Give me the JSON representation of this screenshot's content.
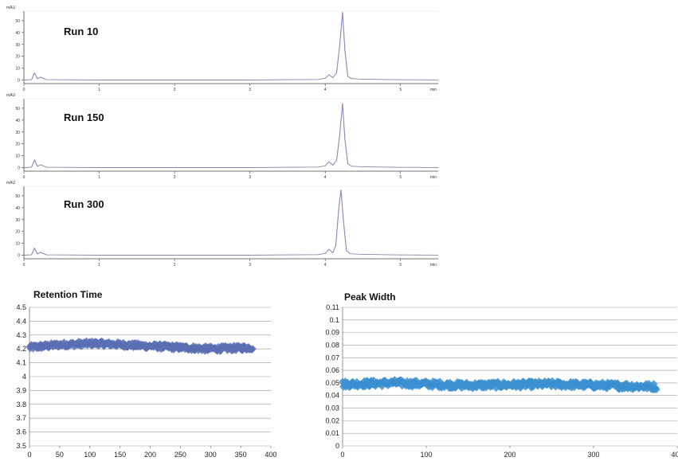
{
  "chart_data": [
    {
      "type": "line",
      "title": "Run 10",
      "ylabel": "mAU",
      "xlabel": "min",
      "xlim": [
        0,
        5.5
      ],
      "ylim": [
        -3,
        58
      ],
      "x_ticks": [
        0,
        1,
        2,
        3,
        4,
        5
      ],
      "y_ticks": [
        0,
        10,
        20,
        30,
        40,
        50
      ],
      "series": [
        {
          "x": [
            0,
            0.1,
            0.14,
            0.18,
            0.22,
            0.3,
            1,
            2,
            3,
            3.9,
            4.0,
            4.05,
            4.1,
            4.15,
            4.19,
            4.23,
            4.26,
            4.3,
            4.35,
            4.45,
            5,
            5.5
          ],
          "y": [
            0,
            0.3,
            6,
            1,
            2.5,
            0.3,
            0,
            0,
            0,
            0.5,
            1.5,
            4.5,
            2,
            6,
            28,
            57,
            25,
            3,
            1.2,
            0.8,
            0.2,
            0.1
          ]
        }
      ]
    },
    {
      "type": "line",
      "title": "Run 150",
      "ylabel": "mAU",
      "xlabel": "min",
      "xlim": [
        0,
        5.5
      ],
      "ylim": [
        -3,
        58
      ],
      "x_ticks": [
        0,
        1,
        2,
        3,
        4,
        5
      ],
      "y_ticks": [
        0,
        10,
        20,
        30,
        40,
        50
      ],
      "series": [
        {
          "x": [
            0,
            0.1,
            0.14,
            0.18,
            0.22,
            0.3,
            1,
            2,
            3,
            3.9,
            4.0,
            4.05,
            4.1,
            4.15,
            4.19,
            4.23,
            4.26,
            4.3,
            4.35,
            4.45,
            5,
            5.5
          ],
          "y": [
            0,
            0.3,
            6.5,
            1,
            2.5,
            0.3,
            0,
            0,
            0,
            0.5,
            1.5,
            5,
            2,
            6,
            26,
            54,
            24,
            3,
            1.2,
            0.8,
            0.2,
            0.1
          ]
        }
      ]
    },
    {
      "type": "line",
      "title": "Run 300",
      "ylabel": "mAU",
      "xlabel": "min",
      "xlim": [
        0,
        5.5
      ],
      "ylim": [
        -3,
        58
      ],
      "x_ticks": [
        0,
        1,
        2,
        3,
        4,
        5
      ],
      "y_ticks": [
        0,
        10,
        20,
        30,
        40,
        50
      ],
      "series": [
        {
          "x": [
            0,
            0.1,
            0.14,
            0.18,
            0.22,
            0.3,
            1,
            2,
            3,
            3.9,
            4.0,
            4.05,
            4.1,
            4.14,
            4.18,
            4.21,
            4.24,
            4.28,
            4.33,
            4.45,
            5,
            5.5
          ],
          "y": [
            0,
            0.3,
            6,
            1,
            2.5,
            0.3,
            0,
            0,
            0,
            0.5,
            1.5,
            5,
            2,
            8,
            40,
            55,
            30,
            4,
            1.2,
            0.8,
            0.2,
            0.1
          ]
        }
      ]
    },
    {
      "type": "scatter",
      "title": "Retention Time",
      "xlim": [
        0,
        400
      ],
      "ylim": [
        3.5,
        4.5
      ],
      "x_ticks": [
        0,
        50,
        100,
        150,
        200,
        250,
        300,
        350,
        400
      ],
      "y_ticks": [
        3.5,
        3.6,
        3.7,
        3.8,
        3.9,
        4,
        4.1,
        4.2,
        4.3,
        4.4,
        4.5
      ],
      "grid": true,
      "color": "#5b6fb3",
      "series": [
        {
          "x_range": [
            0,
            370
          ],
          "n_points": 370,
          "trend": [
            [
              0,
              4.21
            ],
            [
              50,
              4.23
            ],
            [
              110,
              4.24
            ],
            [
              200,
              4.22
            ],
            [
              300,
              4.2
            ],
            [
              370,
              4.21
            ]
          ],
          "spread": 0.02
        }
      ]
    },
    {
      "type": "scatter",
      "title": "Peak Width",
      "xlim": [
        0,
        400
      ],
      "ylim": [
        0,
        0.11
      ],
      "x_ticks": [
        0,
        100,
        200,
        300,
        400
      ],
      "y_ticks": [
        0,
        0.01,
        0.02,
        0.03,
        0.04,
        0.05,
        0.06,
        0.07,
        0.08,
        0.09,
        0.1,
        0.11
      ],
      "grid": true,
      "color": "#3b8fd0",
      "series": [
        {
          "x_range": [
            0,
            375
          ],
          "n_points": 375,
          "trend": [
            [
              0,
              0.049
            ],
            [
              60,
              0.05
            ],
            [
              150,
              0.048
            ],
            [
              250,
              0.049
            ],
            [
              375,
              0.047
            ]
          ],
          "spread": 0.0025
        }
      ]
    }
  ]
}
